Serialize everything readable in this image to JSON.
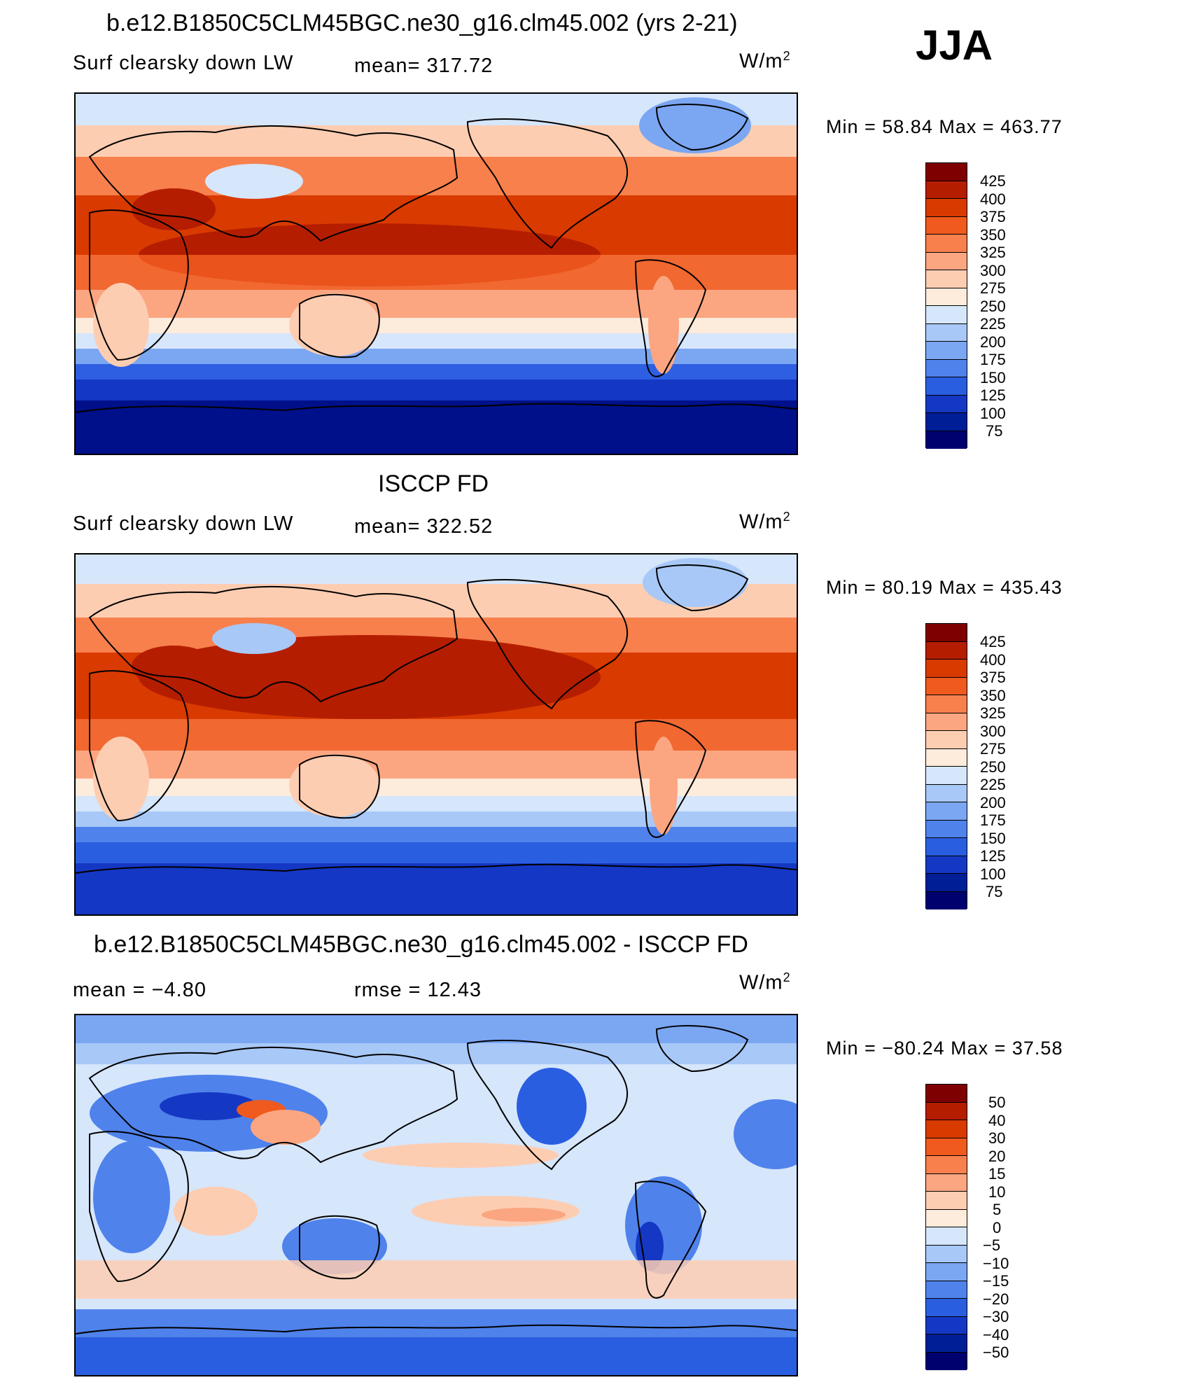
{
  "season": "JJA",
  "panels": [
    {
      "id": "model",
      "title": "b.e12.B1850C5CLM45BGC.ne30_g16.clm45.002 (yrs 2-21)",
      "left_label": "Surf clearsky down LW",
      "center_label": "mean= 317.72",
      "units": "W/m",
      "units_sup": "2",
      "minmax": "Min =   58.84 Max = 463.77",
      "colorbar": {
        "levels": [
          "425",
          "400",
          "375",
          "350",
          "325",
          "300",
          "275",
          "250",
          "225",
          "200",
          "175",
          "150",
          "125",
          "100",
          "75"
        ],
        "colors": [
          "#7f0000",
          "#b51d00",
          "#d93a00",
          "#f05a1e",
          "#f7804d",
          "#fba681",
          "#fdcdb2",
          "#fdebdc",
          "#d6e6fb",
          "#a8c8f7",
          "#7ba6f2",
          "#4f82eb",
          "#2a5ee0",
          "#1438c4",
          "#001e96",
          "#00006e"
        ]
      },
      "field_colors": {
        "polar_s": [
          "#00108a",
          "#0a2fb8",
          "#2e5fe2",
          "#7ba6f2",
          "#cfe2fa"
        ],
        "polar_n": "#d6e6fb",
        "mid": "#fba681",
        "subtrop": "#f05a1e",
        "tropic": "#c52a00",
        "land_cold": "#7ba6f2"
      }
    },
    {
      "id": "obs",
      "title": "ISCCP FD",
      "left_label": "Surf clearsky down LW",
      "center_label": "mean= 322.52",
      "units": "W/m",
      "units_sup": "2",
      "minmax": "Min =   80.19 Max = 435.43",
      "colorbar": {
        "levels": [
          "425",
          "400",
          "375",
          "350",
          "325",
          "300",
          "275",
          "250",
          "225",
          "200",
          "175",
          "150",
          "125",
          "100",
          "75"
        ],
        "colors": [
          "#7f0000",
          "#b51d00",
          "#d93a00",
          "#f05a1e",
          "#f7804d",
          "#fba681",
          "#fdcdb2",
          "#fdebdc",
          "#d6e6fb",
          "#a8c8f7",
          "#7ba6f2",
          "#4f82eb",
          "#2a5ee0",
          "#1438c4",
          "#001e96",
          "#00006e"
        ]
      },
      "field_colors": {
        "polar_s": [
          "#1438c4",
          "#2a5ee0",
          "#4f82eb",
          "#a8c8f7",
          "#d6e6fb"
        ],
        "polar_n": "#d6e6fb",
        "mid": "#fba681",
        "subtrop": "#f05a1e",
        "tropic": "#c52a00",
        "land_cold": "#a8c8f7"
      }
    },
    {
      "id": "diff",
      "title": "b.e12.B1850C5CLM45BGC.ne30_g16.clm45.002 - ISCCP FD",
      "left_label": "mean =   −4.80",
      "center_label": "rmse =   12.43",
      "units": "W/m",
      "units_sup": "2",
      "minmax": "Min = −80.24 Max =   37.58",
      "colorbar": {
        "levels": [
          "50",
          "40",
          "30",
          "20",
          "15",
          "10",
          "5",
          "0",
          "−5",
          "−10",
          "−15",
          "−20",
          "−30",
          "−40",
          "−50"
        ],
        "colors": [
          "#7f0000",
          "#b51d00",
          "#d93a00",
          "#f05a1e",
          "#f7804d",
          "#fba681",
          "#fdcdb2",
          "#fdebdc",
          "#d6e6fb",
          "#a8c8f7",
          "#7ba6f2",
          "#4f82eb",
          "#2a5ee0",
          "#1438c4",
          "#001e96",
          "#00006e"
        ]
      },
      "field_colors": {
        "base": "#d6e6fb",
        "warm": "#fdcdb2",
        "warm2": "#fba681",
        "cold": "#7ba6f2",
        "cold2": "#2a5ee0",
        "hot": "#f05a1e",
        "deep": "#1438c4"
      }
    }
  ]
}
